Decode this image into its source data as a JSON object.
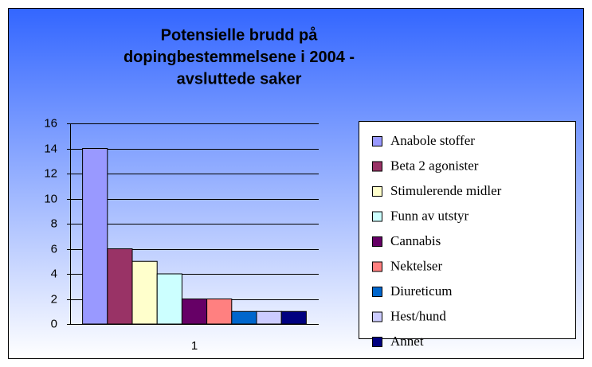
{
  "chart_data": {
    "type": "bar",
    "title": [
      "Potensielle brudd på",
      "dopingbestemmelsene i 2004 -",
      "avsluttede saker"
    ],
    "categories": [
      "1"
    ],
    "series": [
      {
        "name": "Anabole stoffer",
        "color": "#9999ff",
        "values": [
          14
        ]
      },
      {
        "name": "Beta 2 agonister",
        "color": "#993366",
        "values": [
          6
        ]
      },
      {
        "name": "Stimulerende midler",
        "color": "#ffffcc",
        "values": [
          5
        ]
      },
      {
        "name": "Funn av utstyr",
        "color": "#ccffff",
        "values": [
          4
        ]
      },
      {
        "name": "Cannabis",
        "color": "#660066",
        "values": [
          2
        ]
      },
      {
        "name": "Nektelser",
        "color": "#ff8080",
        "values": [
          2
        ]
      },
      {
        "name": "Diureticum",
        "color": "#0066cc",
        "values": [
          1
        ]
      },
      {
        "name": "Hest/hund",
        "color": "#ccccff",
        "values": [
          1
        ]
      },
      {
        "name": "Annet",
        "color": "#000080",
        "values": [
          1
        ]
      }
    ],
    "ylim": [
      0,
      16
    ],
    "yticks": [
      0,
      2,
      4,
      6,
      8,
      10,
      12,
      14,
      16
    ],
    "grid": true,
    "legend": "right"
  }
}
